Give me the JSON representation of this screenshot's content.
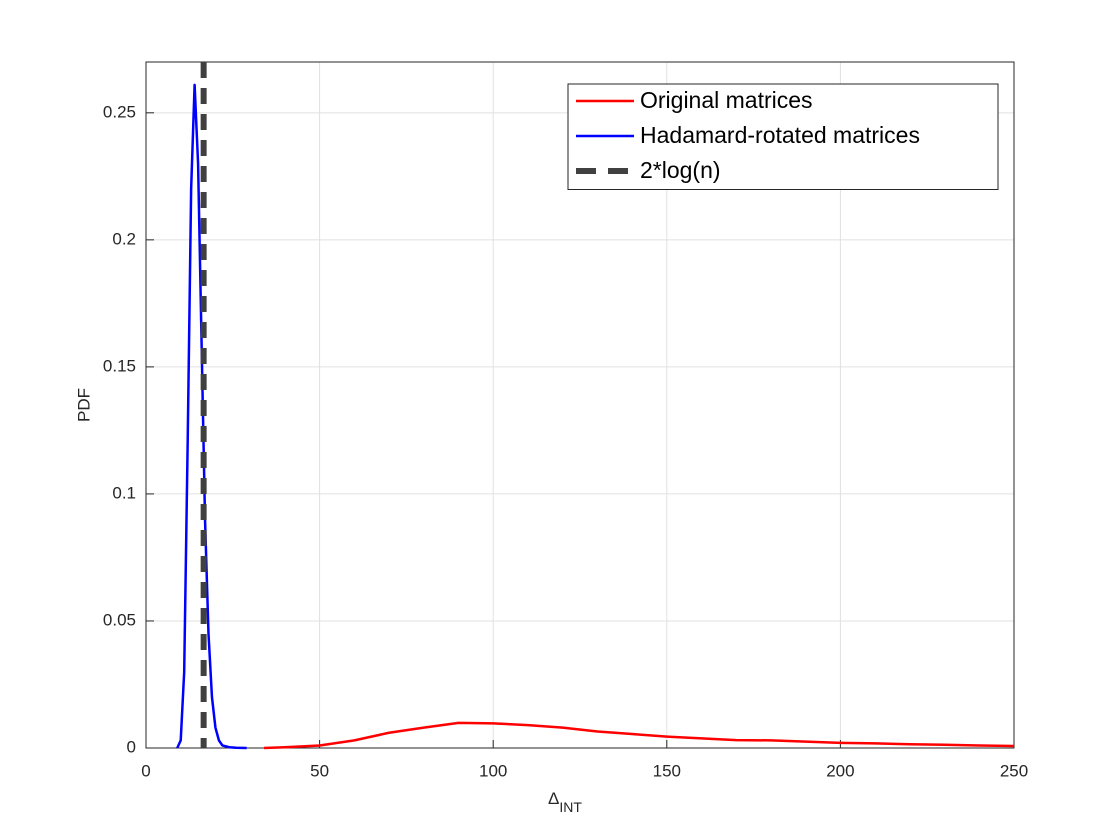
{
  "chart_data": {
    "type": "line",
    "xlabel": "Δ",
    "xlabel_subscript": "INT",
    "ylabel": "PDF",
    "xlim": [
      0,
      250
    ],
    "ylim": [
      0,
      0.27
    ],
    "xticks": [
      0,
      50,
      100,
      150,
      200,
      250
    ],
    "yticks": [
      0,
      0.05,
      0.1,
      0.15,
      0.2,
      0.25
    ],
    "grid": true,
    "legend": "upper right",
    "series": [
      {
        "name": "Original matrices",
        "color": "#ff0000",
        "x": [
          34,
          40,
          50,
          60,
          70,
          80,
          90,
          100,
          110,
          120,
          130,
          140,
          150,
          160,
          170,
          180,
          190,
          200,
          210,
          220,
          230,
          240,
          250
        ],
        "values": [
          0,
          0.0003,
          0.001,
          0.003,
          0.006,
          0.008,
          0.0099,
          0.0097,
          0.009,
          0.008,
          0.0065,
          0.0055,
          0.0045,
          0.0038,
          0.0031,
          0.003,
          0.0025,
          0.002,
          0.0018,
          0.0015,
          0.0013,
          0.001,
          0.0008
        ]
      },
      {
        "name": "Hadamard-rotated matrices",
        "color": "#0000ff",
        "x": [
          9,
          10,
          11,
          12,
          13,
          14,
          15,
          16,
          17,
          18,
          19,
          20,
          21,
          22,
          24,
          26,
          29
        ],
        "values": [
          0,
          0.003,
          0.03,
          0.12,
          0.22,
          0.261,
          0.23,
          0.16,
          0.09,
          0.045,
          0.02,
          0.008,
          0.003,
          0.001,
          0.0003,
          0.0001,
          0
        ]
      },
      {
        "name": "2*log(n)",
        "color": "#404040",
        "style": "dashed",
        "xline": 16.6
      }
    ]
  }
}
